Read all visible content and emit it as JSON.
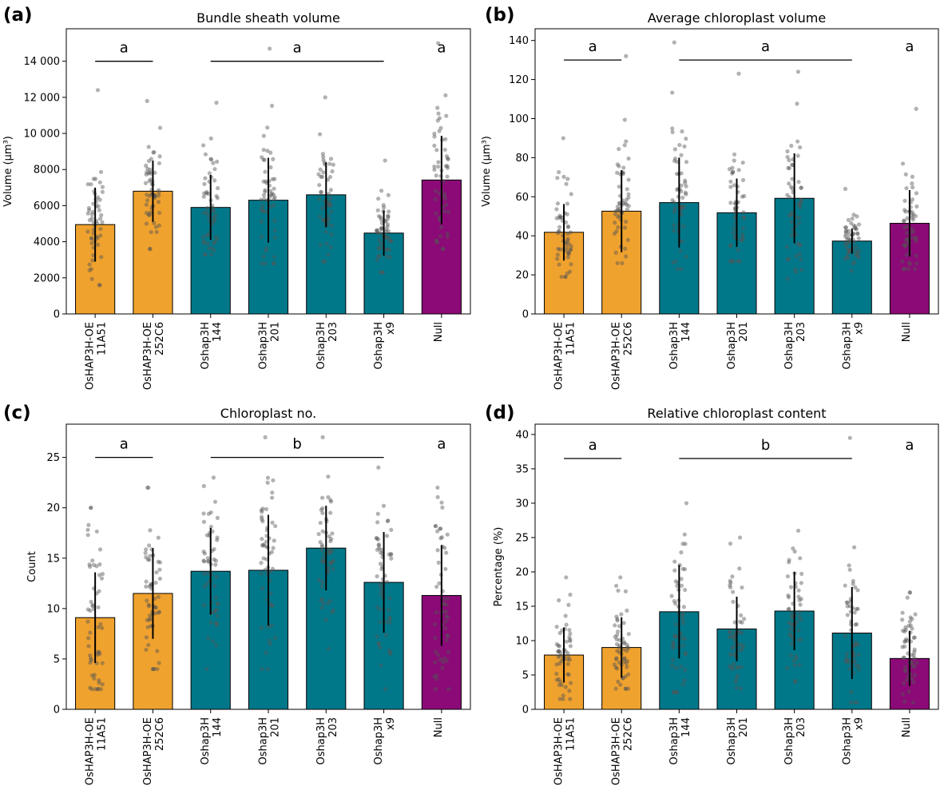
{
  "colors": {
    "overexpression": "#F0A22E",
    "hap3h": "#00788A",
    "null": "#8B0A77",
    "edge": "#000000",
    "points": "#555555"
  },
  "chart_data": [
    {
      "panel_label": "(a)",
      "type": "bar",
      "title": "Bundle sheath volume",
      "ylabel": "Volume (μm³)",
      "ylim": [
        0,
        15800
      ],
      "yticks": [
        0,
        2000,
        4000,
        6000,
        8000,
        10000,
        12000,
        14000
      ],
      "ytick_labels": [
        "0",
        "2000",
        "4000",
        "6000",
        "8000",
        "10 000",
        "12 000",
        "14 000"
      ],
      "categories": [
        [
          "OsHAP3H-OE",
          "11A51"
        ],
        [
          "OsHAP3H-OE",
          "252C6"
        ],
        [
          "Oshap3H",
          "144"
        ],
        [
          "Oshap3H",
          "201"
        ],
        [
          "Oshap3H",
          "203"
        ],
        [
          "Oshap3H",
          "x9"
        ],
        [
          "Null"
        ]
      ],
      "groups": [
        "overexpression",
        "overexpression",
        "hap3h",
        "hap3h",
        "hap3h",
        "hap3h",
        "null"
      ],
      "values": [
        4950,
        6800,
        5900,
        6300,
        6600,
        4480,
        7420
      ],
      "error": [
        2050,
        1700,
        1800,
        2350,
        1800,
        1250,
        2450
      ],
      "spread": [
        [
          1600,
          12400
        ],
        [
          3600,
          11800
        ],
        [
          3300,
          11700
        ],
        [
          2800,
          14700
        ],
        [
          2900,
          12000
        ],
        [
          2300,
          8500
        ],
        [
          3600,
          15000
        ]
      ],
      "significance": [
        {
          "label": "a",
          "from": 0,
          "to": 1,
          "y": 14000,
          "line": true
        },
        {
          "label": "a",
          "from": 2,
          "to": 5,
          "y": 14000,
          "line": true
        },
        {
          "label": "a",
          "from": 6,
          "to": 6,
          "y": 14000,
          "line": false
        }
      ],
      "grid": false
    },
    {
      "panel_label": "(b)",
      "type": "bar",
      "title": "Average chloroplast volume",
      "ylabel": "Volume (μm³)",
      "ylim": [
        0,
        146
      ],
      "yticks": [
        0,
        20,
        40,
        60,
        80,
        100,
        120,
        140
      ],
      "ytick_labels": [
        "0",
        "20",
        "40",
        "60",
        "80",
        "100",
        "120",
        "140"
      ],
      "categories": [
        [
          "OsHAP3H-OE",
          "11A51"
        ],
        [
          "OsHAP3H-OE",
          "252C6"
        ],
        [
          "Oshap3H",
          "144"
        ],
        [
          "Oshap3H",
          "201"
        ],
        [
          "Oshap3H",
          "203"
        ],
        [
          "Oshap3H",
          "x9"
        ],
        [
          "Null"
        ]
      ],
      "groups": [
        "overexpression",
        "overexpression",
        "hap3h",
        "hap3h",
        "hap3h",
        "hap3h",
        "null"
      ],
      "values": [
        41.8,
        52.6,
        57.0,
        51.8,
        59.2,
        37.3,
        46.4
      ],
      "error": [
        14.5,
        21.0,
        23.0,
        17.5,
        23.0,
        6.5,
        17.0
      ],
      "spread": [
        [
          19,
          90
        ],
        [
          26,
          132
        ],
        [
          23,
          139
        ],
        [
          27,
          123
        ],
        [
          18,
          124
        ],
        [
          22,
          64
        ],
        [
          23,
          105
        ]
      ],
      "significance": [
        {
          "label": "a",
          "from": 0,
          "to": 1,
          "y": 130,
          "line": true
        },
        {
          "label": "a",
          "from": 2,
          "to": 5,
          "y": 130,
          "line": true
        },
        {
          "label": "a",
          "from": 6,
          "to": 6,
          "y": 130,
          "line": false
        }
      ],
      "grid": false
    },
    {
      "panel_label": "(c)",
      "type": "bar",
      "title": "Chloroplast no.",
      "ylabel": "Count",
      "ylim": [
        0,
        28.3
      ],
      "yticks": [
        0,
        5,
        10,
        15,
        20,
        25
      ],
      "ytick_labels": [
        "0",
        "5",
        "10",
        "15",
        "20",
        "25"
      ],
      "categories": [
        [
          "OsHAP3H-OE",
          "11A51"
        ],
        [
          "OsHAP3H-OE",
          "252C6"
        ],
        [
          "Oshap3H",
          "144"
        ],
        [
          "Oshap3H",
          "201"
        ],
        [
          "Oshap3H",
          "203"
        ],
        [
          "Oshap3H",
          "x9"
        ],
        [
          "Null"
        ]
      ],
      "groups": [
        "overexpression",
        "overexpression",
        "hap3h",
        "hap3h",
        "hap3h",
        "hap3h",
        "null"
      ],
      "values": [
        9.1,
        11.5,
        13.7,
        13.8,
        16.0,
        12.6,
        11.3
      ],
      "error": [
        4.5,
        4.5,
        4.3,
        5.5,
        4.2,
        5.0,
        5.0
      ],
      "spread": [
        [
          2,
          20
        ],
        [
          4,
          22
        ],
        [
          4,
          23
        ],
        [
          4,
          27
        ],
        [
          6,
          27
        ],
        [
          2,
          24
        ],
        [
          2,
          22
        ]
      ],
      "significance": [
        {
          "label": "a",
          "from": 0,
          "to": 1,
          "y": 25,
          "line": true
        },
        {
          "label": "b",
          "from": 2,
          "to": 5,
          "y": 25,
          "line": true
        },
        {
          "label": "a",
          "from": 6,
          "to": 6,
          "y": 25,
          "line": false
        }
      ],
      "grid": false
    },
    {
      "panel_label": "(d)",
      "type": "bar",
      "title": "Relative chloroplast content",
      "ylabel": "Percentage (%)",
      "ylim": [
        0,
        41.5
      ],
      "yticks": [
        0,
        5,
        10,
        15,
        20,
        25,
        30,
        35,
        40
      ],
      "ytick_labels": [
        "0",
        "5",
        "10",
        "15",
        "20",
        "25",
        "30",
        "35",
        "40"
      ],
      "categories": [
        [
          "OsHAP3H-OE",
          "11A51"
        ],
        [
          "OsHAP3H-OE",
          "252C6"
        ],
        [
          "Oshap3H",
          "144"
        ],
        [
          "Oshap3H",
          "201"
        ],
        [
          "Oshap3H",
          "203"
        ],
        [
          "Oshap3H",
          "x9"
        ],
        [
          "Null"
        ]
      ],
      "groups": [
        "overexpression",
        "overexpression",
        "hap3h",
        "hap3h",
        "hap3h",
        "hap3h",
        "null"
      ],
      "values": [
        7.9,
        9.0,
        14.2,
        11.7,
        14.3,
        11.1,
        7.4
      ],
      "error": [
        4.0,
        4.4,
        6.8,
        4.7,
        5.7,
        6.7,
        4.0
      ],
      "spread": [
        [
          1.5,
          19.2
        ],
        [
          3.0,
          19.2
        ],
        [
          2.5,
          30.0
        ],
        [
          3.0,
          25.0
        ],
        [
          4.0,
          26.0
        ],
        [
          1.0,
          39.5
        ],
        [
          1.0,
          17.0
        ]
      ],
      "significance": [
        {
          "label": "a",
          "from": 0,
          "to": 1,
          "y": 36.5,
          "line": true
        },
        {
          "label": "b",
          "from": 2,
          "to": 5,
          "y": 36.5,
          "line": true
        },
        {
          "label": "a",
          "from": 6,
          "to": 6,
          "y": 36.5,
          "line": false
        }
      ],
      "grid": false
    }
  ]
}
